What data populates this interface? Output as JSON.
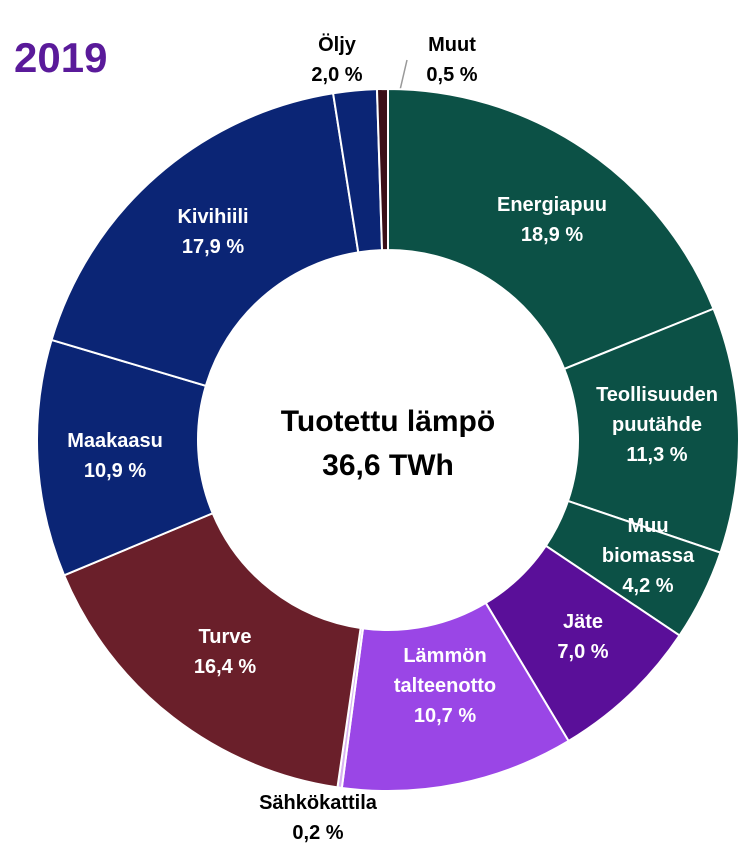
{
  "chart_data": {
    "type": "donut",
    "title": "2019",
    "center_title": "Tuotettu lämpö",
    "center_value": "36,6 TWh",
    "categories": [
      "Energiapuu",
      "Teollisuuden puutähde",
      "Muu biomassa",
      "Jäte",
      "Lämmön talteenotto",
      "Sähkökattila",
      "Turve",
      "Maakaasu",
      "Kivihiili",
      "Öljy",
      "Muut"
    ],
    "values": [
      18.9,
      11.3,
      4.2,
      7.0,
      10.7,
      0.2,
      16.4,
      10.9,
      17.9,
      2.0,
      0.5
    ],
    "value_labels": [
      "18,9 %",
      "11,3 %",
      "4,2 %",
      "7,0 %",
      "10,7 %",
      "0,2 %",
      "16,4 %",
      "10,9 %",
      "17,9 %",
      "2,0 %",
      "0,5 %"
    ],
    "colors": [
      "#0c5146",
      "#0c5146",
      "#0c5146",
      "#5a0f99",
      "#9a46e6",
      "#d9b3f2",
      "#6a1f2a",
      "#0b2575",
      "#0b2575",
      "#0b2575",
      "#3b1018"
    ]
  }
}
